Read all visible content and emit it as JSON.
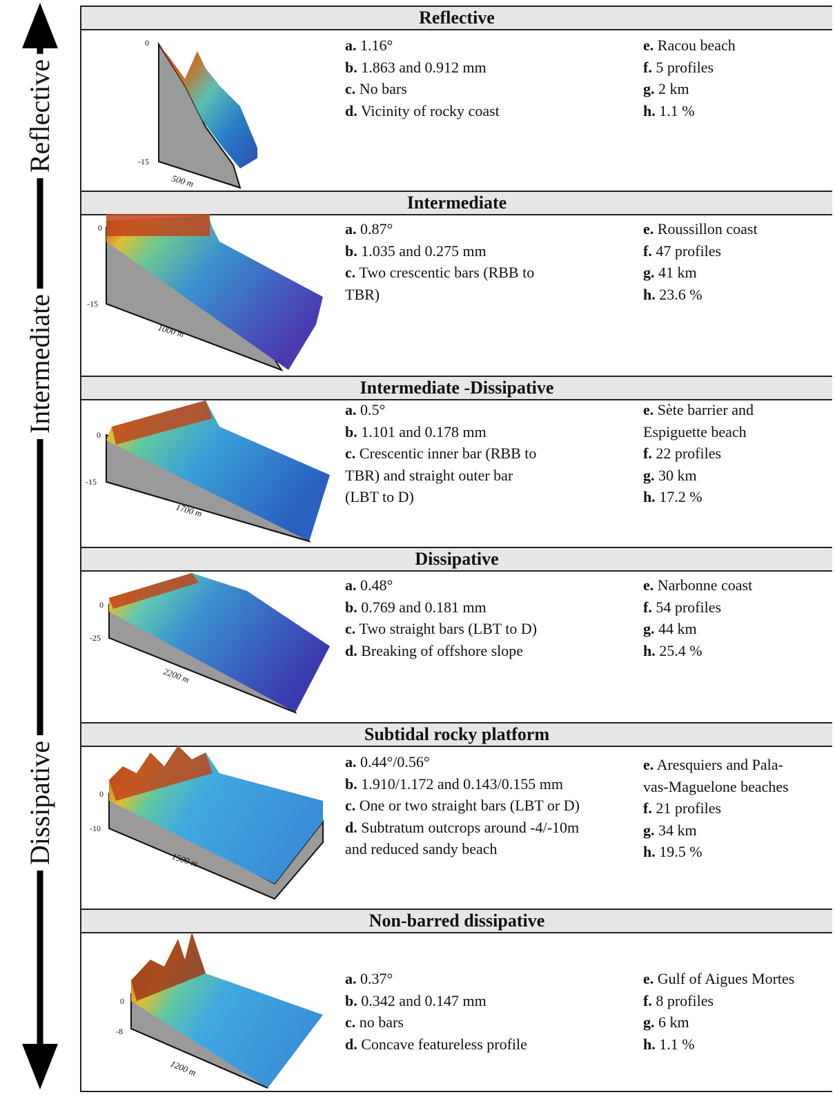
{
  "axis": {
    "labels": {
      "top": "Reflective",
      "middle": "Intermediate",
      "bottom": "Dissipative"
    }
  },
  "sections": [
    {
      "title": "Reflective",
      "figure": {
        "depth_top": "0",
        "depth_bottom": "-15",
        "distance": "500 m"
      },
      "col1": [
        {
          "key": "a.",
          "text": "1.16°"
        },
        {
          "key": "b.",
          "text": "1.863 and 0.912 mm"
        },
        {
          "key": "c.",
          "text": "No bars"
        },
        {
          "key": "d.",
          "text": "Vicinity of rocky coast"
        }
      ],
      "col2": [
        {
          "key": "e.",
          "text": "Racou beach"
        },
        {
          "key": "f.",
          "text": "5 profiles"
        },
        {
          "key": "g.",
          "text": "2 km"
        },
        {
          "key": "h.",
          "text": "1.1 %"
        }
      ]
    },
    {
      "title": "Intermediate",
      "figure": {
        "depth_top": "0",
        "depth_bottom": "-15",
        "distance": "1000 m"
      },
      "col1": [
        {
          "key": "a.",
          "text": "0.87°"
        },
        {
          "key": "b.",
          "text": "1.035 and 0.275 mm"
        },
        {
          "key": "c.",
          "text": "Two crescentic bars (RBB to"
        },
        {
          "key": "",
          "text": "TBR)"
        }
      ],
      "col2": [
        {
          "key": "e.",
          "text": "Roussillon coast"
        },
        {
          "key": "f.",
          "text": "47 profiles"
        },
        {
          "key": "g.",
          "text": "41 km"
        },
        {
          "key": "h.",
          "text": "23.6 %"
        }
      ]
    },
    {
      "title": "Intermediate -Dissipative",
      "figure": {
        "depth_top": "0",
        "depth_bottom": "-15",
        "distance": "1700 m"
      },
      "col1": [
        {
          "key": "a.",
          "text": "0.5°"
        },
        {
          "key": "b.",
          "text": "1.101 and 0.178 mm"
        },
        {
          "key": "c.",
          "text": "Crescentic inner bar (RBB to"
        },
        {
          "key": "",
          "text": "TBR) and straight outer bar"
        },
        {
          "key": "",
          "text": "(LBT to D)"
        }
      ],
      "col2": [
        {
          "key": "e.",
          "text": "Sète barrier and"
        },
        {
          "key": "",
          "text": "Espiguette beach"
        },
        {
          "key": "f.",
          "text": "22 profiles"
        },
        {
          "key": "g.",
          "text": "30 km"
        },
        {
          "key": "h.",
          "text": "17.2 %"
        }
      ]
    },
    {
      "title": "Dissipative",
      "figure": {
        "depth_top": "0",
        "depth_bottom": "-25",
        "distance": "2200 m"
      },
      "col1": [
        {
          "key": "a.",
          "text": "0.48°"
        },
        {
          "key": "b.",
          "text": "0.769 and 0.181 mm"
        },
        {
          "key": "c.",
          "text": "Two straight bars (LBT to D)"
        },
        {
          "key": "d.",
          "text": "Breaking of offshore slope"
        }
      ],
      "col2": [
        {
          "key": "e.",
          "text": "Narbonne coast"
        },
        {
          "key": "f.",
          "text": "54 profiles"
        },
        {
          "key": "g.",
          "text": "44 km"
        },
        {
          "key": "h.",
          "text": "25.4 %"
        }
      ]
    },
    {
      "title": "Subtidal rocky platform",
      "figure": {
        "depth_top": "0",
        "depth_bottom": "-10",
        "distance": "1500 m"
      },
      "col1": [
        {
          "key": "a.",
          "text": "0.44°/0.56°"
        },
        {
          "key": "b.",
          "text": "1.910/1.172 and 0.143/0.155 mm"
        },
        {
          "key": "c.",
          "text": "One or two straight bars (LBT or D)"
        },
        {
          "key": "d.",
          "text": "Subtratum outcrops around -4/-10m"
        },
        {
          "key": "",
          "text": "and reduced sandy beach"
        }
      ],
      "col2": [
        {
          "key": "e.",
          "text": "Aresquiers and Pala-"
        },
        {
          "key": "",
          "text": "vas-Maguelone beaches"
        },
        {
          "key": "f.",
          "text": "21 profiles"
        },
        {
          "key": "g.",
          "text": "34 km"
        },
        {
          "key": "h.",
          "text": "19.5 %"
        }
      ]
    },
    {
      "title": "Non-barred dissipative",
      "figure": {
        "depth_top": "0",
        "depth_bottom": "-8",
        "distance": "1200 m"
      },
      "col1": [
        {
          "key": "a.",
          "text": "0.37°"
        },
        {
          "key": "b.",
          "text": "0.342 and 0.147 mm"
        },
        {
          "key": "c.",
          "text": "no bars"
        },
        {
          "key": "d.",
          "text": "Concave featureless profile"
        }
      ],
      "col2": [
        {
          "key": "e.",
          "text": "Gulf of Aigues Mortes"
        },
        {
          "key": "f.",
          "text": "8 profiles"
        },
        {
          "key": "g.",
          "text": "6 km"
        },
        {
          "key": "h.",
          "text": "1.1 %"
        }
      ]
    }
  ]
}
